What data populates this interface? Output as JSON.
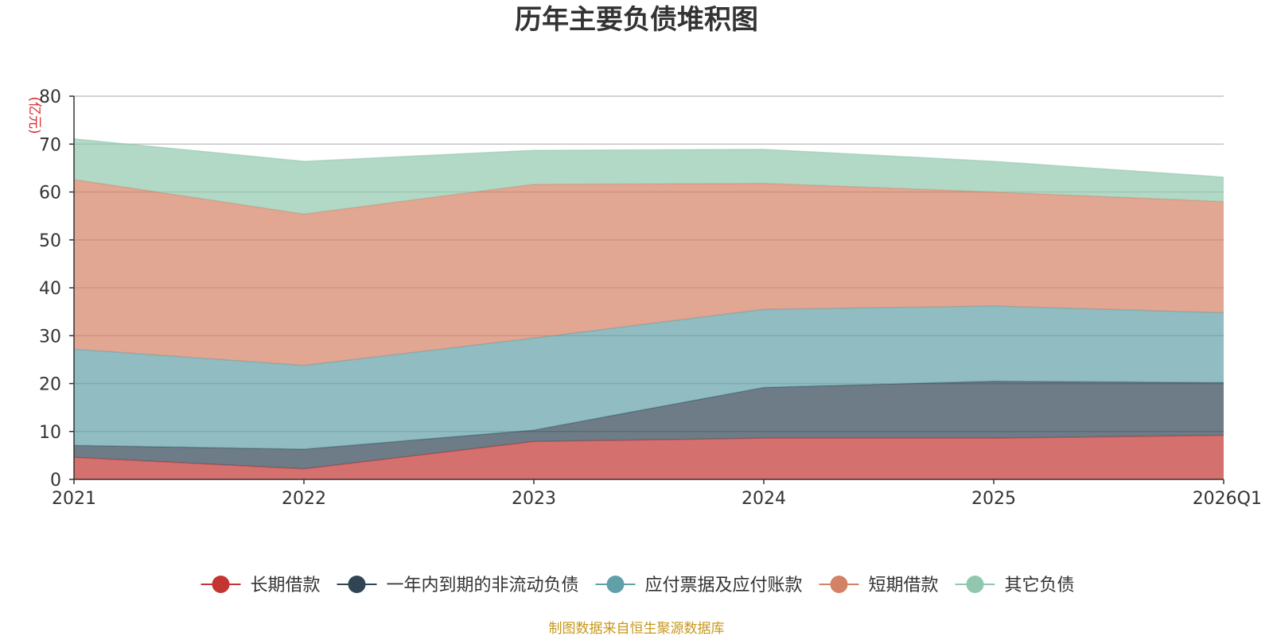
{
  "chart_data": {
    "type": "area",
    "stacked": true,
    "title": "历年主要负债堆积图",
    "ylabel": "(亿元)",
    "xlabel": "",
    "categories": [
      "2021",
      "2022",
      "2023",
      "2024",
      "2025",
      "2026Q1"
    ],
    "ylim": [
      0,
      80
    ],
    "yticks": [
      0,
      10,
      20,
      30,
      40,
      50,
      60,
      70,
      80
    ],
    "grid": true,
    "legend_position": "bottom",
    "series": [
      {
        "name": "长期借款",
        "color": "#c23531",
        "values": [
          4.6,
          2.2,
          7.9,
          8.6,
          8.6,
          9.2
        ]
      },
      {
        "name": "一年内到期的非流动负债",
        "color": "#2f4554",
        "values": [
          2.5,
          4.1,
          2.4,
          10.6,
          11.9,
          11.0
        ]
      },
      {
        "name": "应付票据及应付账款",
        "color": "#61a0a8",
        "values": [
          20.1,
          17.5,
          19.2,
          16.3,
          15.7,
          14.6
        ]
      },
      {
        "name": "短期借款",
        "color": "#d48265",
        "values": [
          35.4,
          31.6,
          32.1,
          26.3,
          23.8,
          23.2
        ]
      },
      {
        "name": "其它负债",
        "color": "#91c7ae",
        "values": [
          8.5,
          11.0,
          7.1,
          7.1,
          6.4,
          5.1
        ]
      }
    ],
    "source": "制图数据来自恒生聚源数据库"
  }
}
